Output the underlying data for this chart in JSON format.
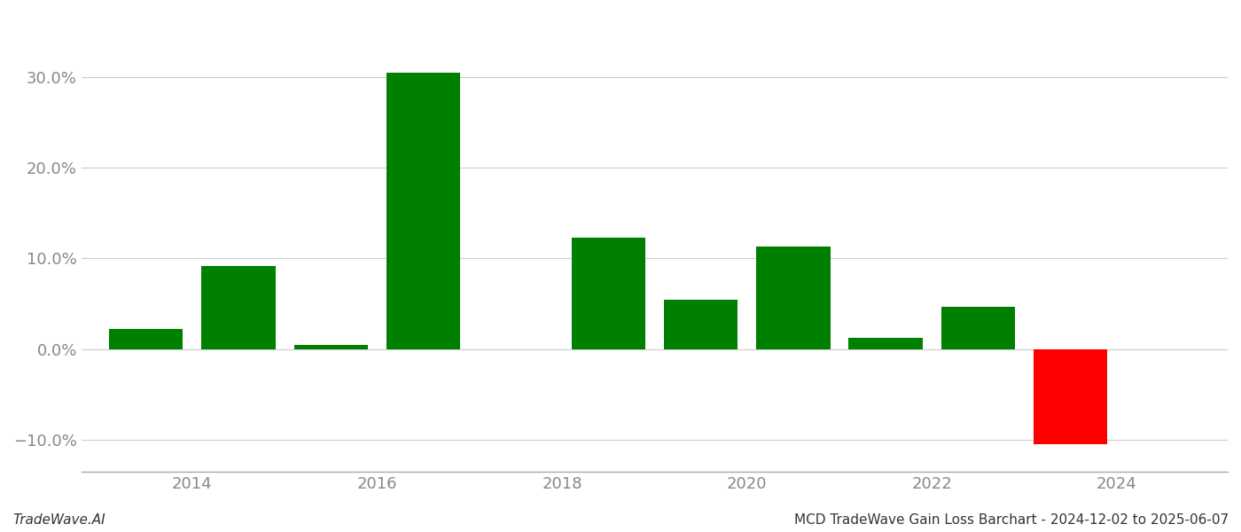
{
  "years": [
    2013.5,
    2014.5,
    2015.5,
    2016.5,
    2018.5,
    2019.5,
    2020.5,
    2021.5,
    2022.5,
    2023.5
  ],
  "values": [
    0.022,
    0.092,
    0.005,
    0.305,
    0.123,
    0.055,
    0.113,
    0.013,
    0.047,
    -0.105
  ],
  "colors": [
    "#008000",
    "#008000",
    "#008000",
    "#008000",
    "#008000",
    "#008000",
    "#008000",
    "#008000",
    "#008000",
    "#ff0000"
  ],
  "bar_width": 0.8,
  "ylim": [
    -0.135,
    0.37
  ],
  "yticks": [
    -0.1,
    0.0,
    0.1,
    0.2,
    0.3
  ],
  "ytick_labels": [
    "−10.0%",
    "0.0%",
    "10.0%",
    "20.0%",
    "30.0%"
  ],
  "xlim": [
    2012.8,
    2025.2
  ],
  "xtick_positions": [
    2014,
    2016,
    2018,
    2020,
    2022,
    2024
  ],
  "footer_left": "TradeWave.AI",
  "footer_right": "MCD TradeWave Gain Loss Barchart - 2024-12-02 to 2025-06-07",
  "background_color": "#ffffff",
  "grid_color": "#cccccc",
  "grid_linewidth": 0.8,
  "axis_color": "#aaaaaa",
  "tick_color": "#888888",
  "footer_fontsize": 11,
  "tick_fontsize": 13,
  "fig_width": 14.0,
  "fig_height": 6.0,
  "dpi": 100
}
